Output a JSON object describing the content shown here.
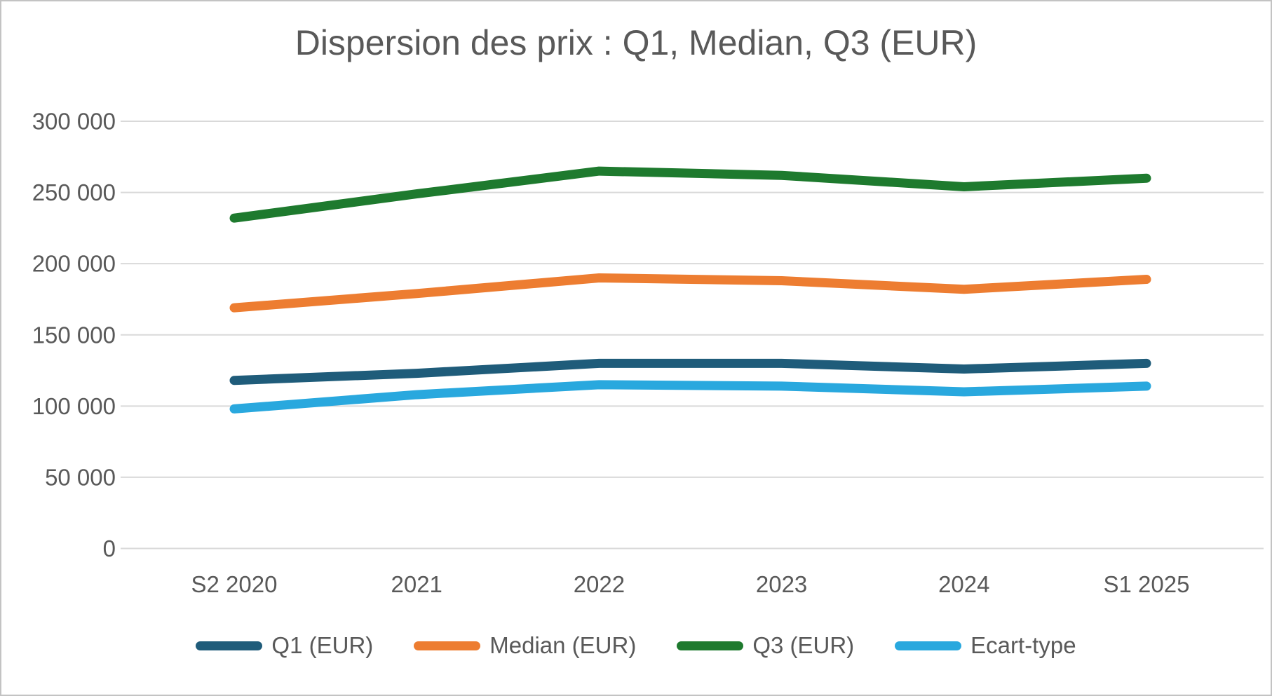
{
  "chart_data": {
    "type": "line",
    "title": "Dispersion des prix : Q1, Median, Q3 (EUR)",
    "categories": [
      "S2 2020",
      "2021",
      "2022",
      "2023",
      "2024",
      "S1 2025"
    ],
    "series": [
      {
        "name": "Q1 (EUR)",
        "color": "#1F5C7A",
        "values": [
          118000,
          123000,
          130000,
          130000,
          126000,
          130000
        ]
      },
      {
        "name": "Median (EUR)",
        "color": "#ED7D31",
        "values": [
          169000,
          179000,
          190000,
          188000,
          182000,
          189000
        ]
      },
      {
        "name": "Q3 (EUR)",
        "color": "#1E7A2E",
        "values": [
          232000,
          249000,
          265000,
          262000,
          254000,
          260000
        ]
      },
      {
        "name": "Ecart-type",
        "color": "#29A8DE",
        "values": [
          98000,
          108000,
          115000,
          114000,
          110000,
          114000
        ]
      }
    ],
    "ylim": [
      0,
      300000
    ],
    "yticks": [
      {
        "value": 0,
        "label": "0"
      },
      {
        "value": 50000,
        "label": "50 000"
      },
      {
        "value": 100000,
        "label": "100 000"
      },
      {
        "value": 150000,
        "label": "150 000"
      },
      {
        "value": 200000,
        "label": "200 000"
      },
      {
        "value": 250000,
        "label": "250 000"
      },
      {
        "value": 300000,
        "label": "300 000"
      }
    ],
    "xlabel": "",
    "ylabel": "",
    "grid": true,
    "legend_position": "bottom",
    "text_color": "#595959",
    "gridline_color": "#D9D9D9",
    "background_color": "#FFFFFF"
  }
}
